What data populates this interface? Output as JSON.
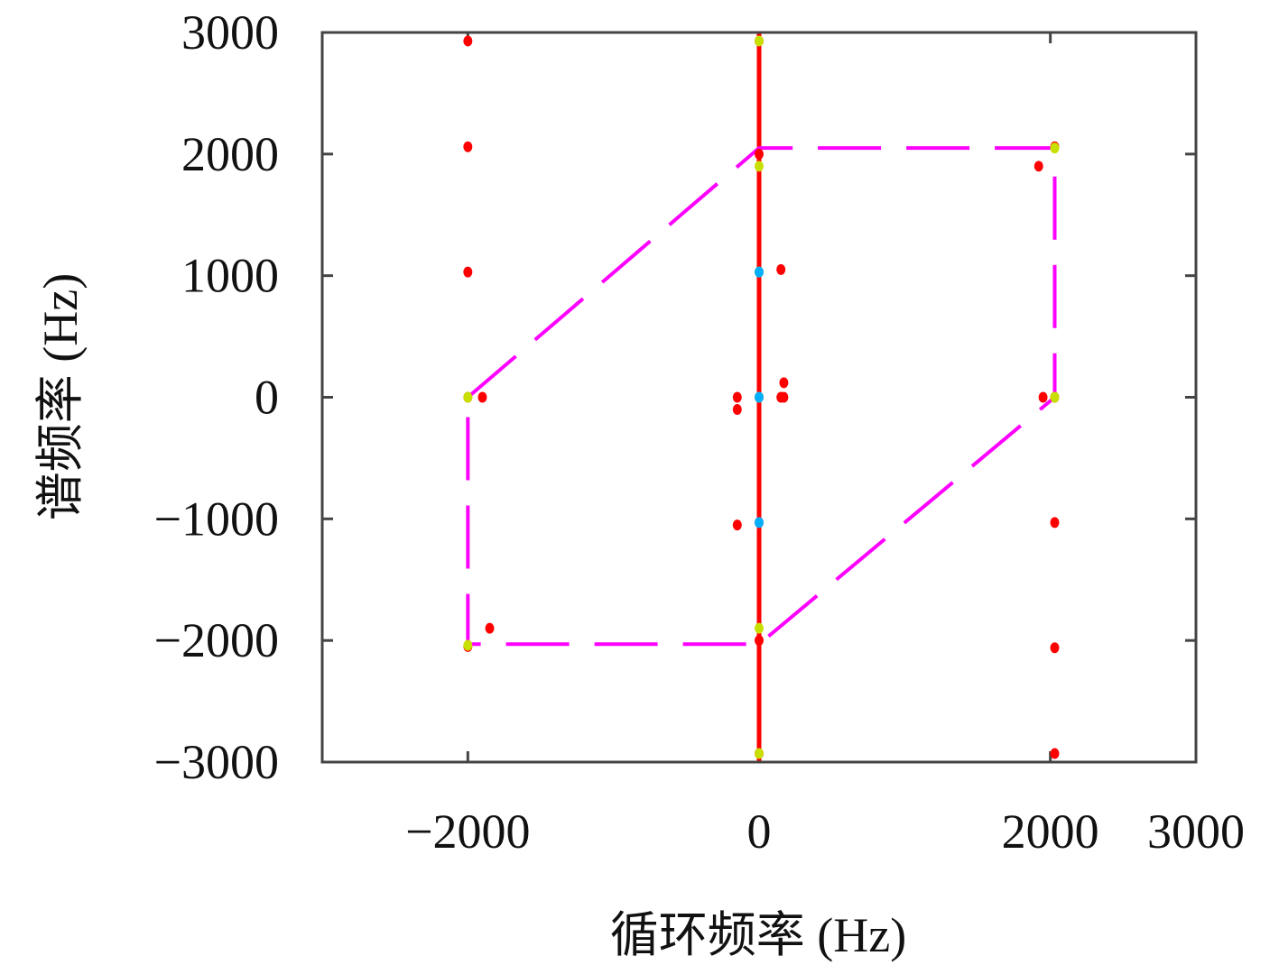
{
  "chart_data": {
    "type": "scatter",
    "x_label": "循环频率 (Hz)",
    "y_label": "谱频率 (Hz)",
    "xlim": [
      -3000,
      3000
    ],
    "ylim": [
      -3000,
      3000
    ],
    "xticks": [
      {
        "value": -2000,
        "label": "−2000"
      },
      0,
      2000,
      3000
    ],
    "yticks": [
      {
        "value": -3000,
        "label": "−3000"
      },
      {
        "value": -2000,
        "label": "−2000"
      },
      {
        "value": -1000,
        "label": "−1000"
      },
      0,
      1000,
      2000,
      3000
    ],
    "series": [
      {
        "mode": "line",
        "style": "solid",
        "color": "#ff0000",
        "x": [
          0,
          0
        ],
        "values": [
          -3000,
          3000
        ]
      },
      {
        "mode": "line",
        "style": "dashed",
        "color": "#ff00ff",
        "x": [
          -2000,
          0,
          2030,
          2030,
          0,
          -2000,
          -2000
        ],
        "values": [
          0,
          2050,
          2050,
          0,
          -2030,
          -2030,
          0
        ]
      },
      {
        "mode": "points",
        "color": "#ff0000",
        "x": [
          -2000,
          -2000,
          -2000,
          -2000,
          -1900,
          -2000,
          -1850,
          2030,
          1920,
          2030,
          1950,
          2030,
          2030,
          2030,
          0,
          0,
          0,
          0,
          -150,
          150,
          -150,
          170,
          170,
          150,
          -150,
          0,
          0,
          0
        ],
        "values": [
          2930,
          2060,
          1030,
          0,
          0,
          -2050,
          -1900,
          2060,
          1900,
          0,
          0,
          -1030,
          -2060,
          -2930,
          2930,
          2000,
          1030,
          0,
          0,
          0,
          -100,
          120,
          0,
          1050,
          -1050,
          -1030,
          -2000,
          -2930
        ]
      },
      {
        "mode": "points",
        "color": "#c8e000",
        "x": [
          0,
          0,
          0,
          0,
          0,
          0,
          -2000,
          2030,
          -2000,
          2030
        ],
        "values": [
          2930,
          1900,
          0,
          -1900,
          -2930,
          1030,
          0,
          2050,
          -2040,
          0
        ]
      },
      {
        "mode": "points",
        "color": "#00b0ff",
        "x": [
          0,
          0,
          0
        ],
        "values": [
          1030,
          0,
          -1030
        ]
      }
    ]
  }
}
